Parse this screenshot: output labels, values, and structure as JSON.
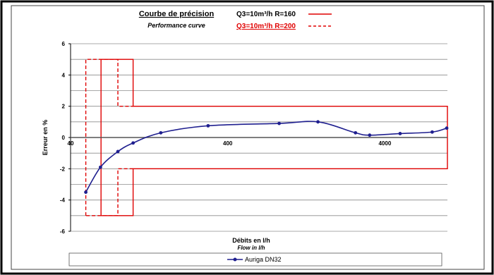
{
  "chart_data": {
    "type": "line",
    "title": "Courbe de précision",
    "subtitle": "Performance curve",
    "xlabel": "Débits en l/h",
    "xlabel_sub": "Flow in l/h",
    "ylabel": "Erreur en %",
    "x_scale": "log",
    "xlim": [
      40,
      10000
    ],
    "ylim": [
      -6,
      6
    ],
    "x_ticks": [
      40,
      400,
      4000
    ],
    "y_ticks": [
      6,
      4,
      2,
      0,
      -2,
      -4,
      -6
    ],
    "grid": true,
    "legend_position": "bottom",
    "reference_curves": [
      {
        "name": "Q3=10m³/h R=160",
        "style": "solid",
        "color": "#e00000"
      },
      {
        "name": "Q3=10m³/h R=200",
        "style": "dashed",
        "color": "#e00000"
      }
    ],
    "envelopes": [
      {
        "style": "solid",
        "points": [
          [
            62.5,
            -5
          ],
          [
            62.5,
            5
          ],
          [
            100,
            5
          ],
          [
            100,
            2
          ],
          [
            10000,
            2
          ],
          [
            10000,
            -2
          ],
          [
            100,
            -2
          ],
          [
            100,
            -5
          ],
          [
            62.5,
            -5
          ]
        ]
      },
      {
        "style": "dashed",
        "points": [
          [
            50,
            -5
          ],
          [
            50,
            5
          ],
          [
            80,
            5
          ],
          [
            80,
            2
          ],
          [
            100,
            2
          ]
        ]
      },
      {
        "style": "dashed",
        "points": [
          [
            100,
            -2
          ],
          [
            80,
            -2
          ],
          [
            80,
            -5
          ],
          [
            50,
            -5
          ]
        ]
      }
    ],
    "series": [
      {
        "name": "Auriga DN32",
        "color": "#1f1f8f",
        "points": [
          [
            50,
            -3.5
          ],
          [
            62,
            -1.9
          ],
          [
            80,
            -0.9
          ],
          [
            100,
            -0.35
          ],
          [
            150,
            0.3
          ],
          [
            300,
            0.75
          ],
          [
            850,
            0.9
          ],
          [
            1500,
            1.0
          ],
          [
            2600,
            0.3
          ],
          [
            3200,
            0.15
          ],
          [
            5000,
            0.25
          ],
          [
            8000,
            0.35
          ],
          [
            9900,
            0.6
          ]
        ]
      }
    ]
  },
  "legend_top": {
    "row1_label": "Q3=10m³/h R=160",
    "row2_label": "Q3=10m³/h R=200"
  }
}
